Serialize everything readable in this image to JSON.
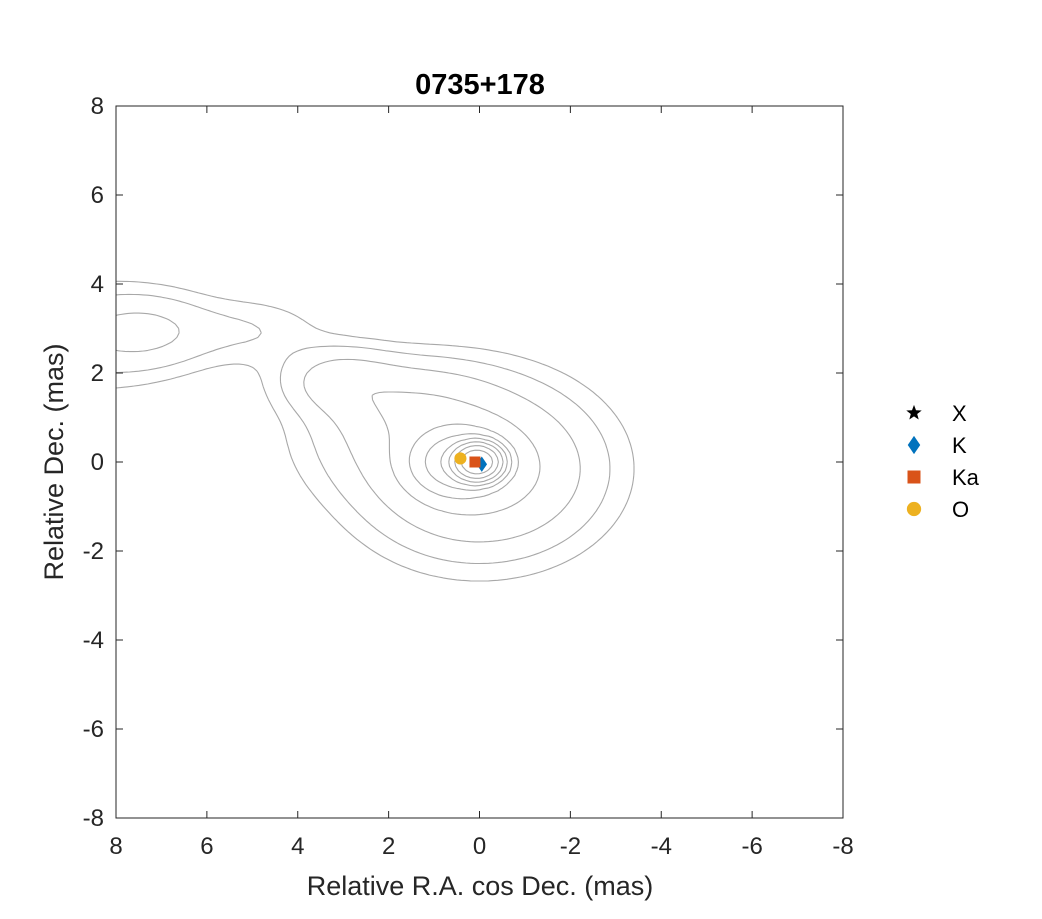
{
  "chart_data": {
    "type": "scatter",
    "title": "0735+178",
    "xlabel": "Relative R.A. cos Dec. (mas)",
    "ylabel": "Relative Dec. (mas)",
    "xlim": [
      8,
      -8
    ],
    "ylim": [
      -8,
      8
    ],
    "x_reversed": true,
    "xticks": [
      8,
      6,
      4,
      2,
      0,
      -2,
      -4,
      -6,
      -8
    ],
    "yticks": [
      -8,
      -6,
      -4,
      -2,
      0,
      2,
      4,
      6,
      8
    ],
    "grid": false,
    "legend_position": "right-outside",
    "series": [
      {
        "name": "X",
        "marker": "star",
        "color": "#000000",
        "points": []
      },
      {
        "name": "K",
        "marker": "diamond",
        "color": "#0072BD",
        "points": [
          [
            -0.05,
            -0.05
          ]
        ]
      },
      {
        "name": "Ka",
        "marker": "square",
        "color": "#D95319",
        "points": [
          [
            0.1,
            0.0
          ]
        ]
      },
      {
        "name": "O",
        "marker": "circle",
        "color": "#EDB120",
        "points": [
          [
            0.42,
            0.08
          ]
        ]
      }
    ],
    "contours": {
      "core": [
        0.05,
        0.0
      ],
      "levels": 11,
      "jet_direction": "east, extending beyond x=8 mas at y≈3"
    }
  }
}
